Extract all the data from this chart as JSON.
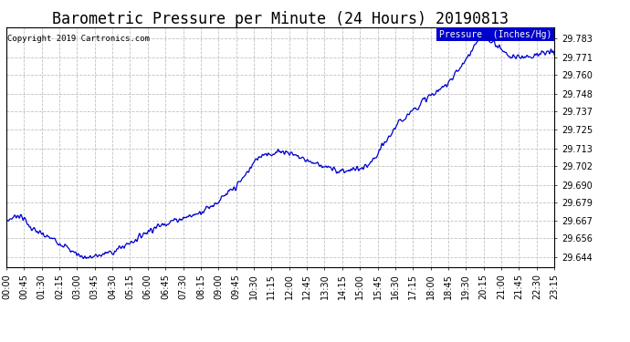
{
  "title": "Barometric Pressure per Minute (24 Hours) 20190813",
  "copyright": "Copyright 2019 Cartronics.com",
  "legend_label": "Pressure  (Inches/Hg)",
  "yticks": [
    29.644,
    29.656,
    29.667,
    29.679,
    29.69,
    29.702,
    29.713,
    29.725,
    29.737,
    29.748,
    29.76,
    29.771,
    29.783
  ],
  "ymin": 29.638,
  "ymax": 29.79,
  "line_color": "#0000cc",
  "background_color": "#ffffff",
  "grid_color": "#bbbbbb",
  "title_fontsize": 12,
  "copyright_fontsize": 6.5,
  "tick_fontsize": 7,
  "xtick_labels": [
    "00:00",
    "00:45",
    "01:30",
    "02:15",
    "03:00",
    "03:45",
    "04:30",
    "05:15",
    "06:00",
    "06:45",
    "07:30",
    "08:15",
    "09:00",
    "09:45",
    "10:30",
    "11:15",
    "12:00",
    "12:45",
    "13:30",
    "14:15",
    "15:00",
    "15:45",
    "16:30",
    "17:15",
    "18:00",
    "18:45",
    "19:30",
    "20:15",
    "21:00",
    "21:45",
    "22:30",
    "23:15"
  ],
  "anchors_t": [
    0,
    0.25,
    0.5,
    0.75,
    1.0,
    1.25,
    1.5,
    1.75,
    2.0,
    2.25,
    2.5,
    2.75,
    3.0,
    3.25,
    3.5,
    3.75,
    4.0,
    4.25,
    4.5,
    4.75,
    5.0,
    5.25,
    5.5,
    5.75,
    6.0,
    6.25,
    6.5,
    6.75,
    7.0,
    7.25,
    7.5,
    7.75,
    8.0,
    8.25,
    8.5,
    8.75,
    9.0,
    9.25,
    9.5,
    9.75,
    10.0,
    10.25,
    10.5,
    10.75,
    11.0,
    11.25,
    11.5,
    11.75,
    12.0,
    12.25,
    12.5,
    12.75,
    13.0,
    13.25,
    13.5,
    13.75,
    14.0,
    14.25,
    14.5,
    14.75,
    15.0,
    15.25,
    15.5,
    15.75,
    16.0,
    16.25,
    16.5,
    16.75,
    17.0,
    17.25,
    17.5,
    17.75,
    18.0,
    18.25,
    18.5,
    18.75,
    19.0,
    19.25,
    19.5,
    19.75,
    20.0,
    20.25,
    20.5,
    20.75,
    21.0,
    21.25,
    21.5,
    21.75,
    22.0,
    22.25,
    22.5,
    22.75,
    23.0,
    23.25,
    23.5,
    23.75,
    24.0
  ],
  "anchors_v": [
    29.667,
    29.669,
    29.671,
    29.669,
    29.664,
    29.661,
    29.659,
    29.657,
    29.656,
    29.654,
    29.652,
    29.649,
    29.647,
    29.645,
    29.644,
    29.644,
    29.645,
    29.646,
    29.647,
    29.648,
    29.65,
    29.652,
    29.654,
    29.656,
    29.659,
    29.661,
    29.663,
    29.664,
    29.666,
    29.667,
    29.668,
    29.669,
    29.67,
    29.671,
    29.673,
    29.675,
    29.677,
    29.679,
    29.682,
    29.685,
    29.688,
    29.692,
    29.697,
    29.702,
    29.707,
    29.71,
    29.71,
    29.709,
    29.712,
    29.711,
    29.71,
    29.708,
    29.707,
    29.705,
    29.704,
    29.703,
    29.701,
    29.7,
    29.699,
    29.699,
    29.699,
    29.7,
    29.7,
    29.701,
    29.704,
    29.709,
    29.715,
    29.72,
    29.726,
    29.73,
    29.734,
    29.737,
    29.74,
    29.743,
    29.746,
    29.748,
    29.75,
    29.754,
    29.758,
    29.762,
    29.767,
    29.772,
    29.778,
    29.782,
    29.783,
    29.781,
    29.779,
    29.775,
    29.772,
    29.771,
    29.771,
    29.772,
    29.772,
    29.773,
    29.773,
    29.774,
    29.774
  ]
}
